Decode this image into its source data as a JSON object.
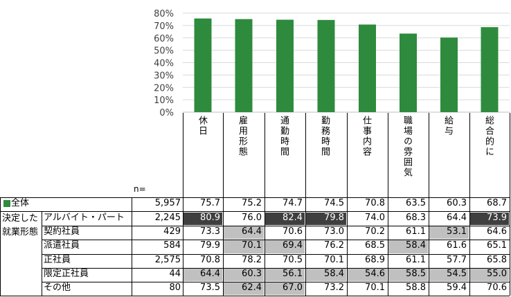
{
  "chart_data": {
    "type": "bar",
    "categories": [
      "休日",
      "雇用形態",
      "通勤時間",
      "勤務時間",
      "仕事内容",
      "職場の雰囲気",
      "給与",
      "総合的に"
    ],
    "values": [
      75.7,
      75.2,
      74.7,
      74.5,
      70.8,
      63.5,
      60.3,
      68.7
    ],
    "ylim": [
      0,
      80
    ],
    "y_ticks": [
      "0%",
      "10%",
      "20%",
      "30%",
      "40%",
      "50%",
      "60%",
      "70%",
      "80%"
    ],
    "grid": true,
    "bar_color": "#2e8b3d"
  },
  "table": {
    "n_label": "n=",
    "total_row": {
      "marker_color": "#2e8b3d",
      "label": "全体",
      "n": "5,957",
      "values": [
        "75.7",
        "75.2",
        "74.7",
        "74.5",
        "70.8",
        "63.5",
        "60.3",
        "68.7"
      ]
    },
    "group_label_line1": "決定した",
    "group_label_line2": "就業形態",
    "rows": [
      {
        "label": "アルバイト・パート",
        "n": "2,245",
        "values": [
          "80.9",
          "76.0",
          "82.4",
          "79.8",
          "74.0",
          "68.3",
          "64.4",
          "73.9"
        ],
        "shade": [
          "dark",
          "",
          "dark",
          "dark",
          "",
          "",
          "",
          "dark"
        ]
      },
      {
        "label": "契約社員",
        "n": "429",
        "values": [
          "73.3",
          "64.4",
          "70.6",
          "73.0",
          "70.2",
          "61.1",
          "53.1",
          "64.6"
        ],
        "shade": [
          "",
          "light",
          "",
          "",
          "",
          "",
          "light",
          ""
        ]
      },
      {
        "label": "派遣社員",
        "n": "584",
        "values": [
          "79.9",
          "70.1",
          "69.4",
          "76.2",
          "68.5",
          "58.4",
          "61.6",
          "65.1"
        ],
        "shade": [
          "",
          "light",
          "light",
          "",
          "",
          "light",
          "",
          ""
        ]
      },
      {
        "label": "正社員",
        "n": "2,575",
        "values": [
          "70.8",
          "78.2",
          "70.5",
          "70.1",
          "68.9",
          "61.1",
          "57.7",
          "65.8"
        ],
        "shade": [
          "",
          "",
          "",
          "",
          "",
          "",
          "",
          ""
        ]
      },
      {
        "label": "限定正社員",
        "n": "44",
        "values": [
          "64.4",
          "60.3",
          "56.1",
          "58.4",
          "54.6",
          "58.5",
          "54.5",
          "55.0"
        ],
        "shade": [
          "light",
          "light",
          "light",
          "light",
          "light",
          "light",
          "light",
          "light"
        ]
      },
      {
        "label": "その他",
        "n": "80",
        "values": [
          "73.5",
          "62.4",
          "67.0",
          "73.2",
          "70.1",
          "58.8",
          "59.4",
          "70.6"
        ],
        "shade": [
          "",
          "light",
          "light",
          "",
          "",
          "",
          "",
          ""
        ]
      }
    ],
    "colors": {
      "dark": "#3f3f3f",
      "light": "#c0c0c0",
      "line": "#000000",
      "grid": "#d9d9d9"
    }
  }
}
